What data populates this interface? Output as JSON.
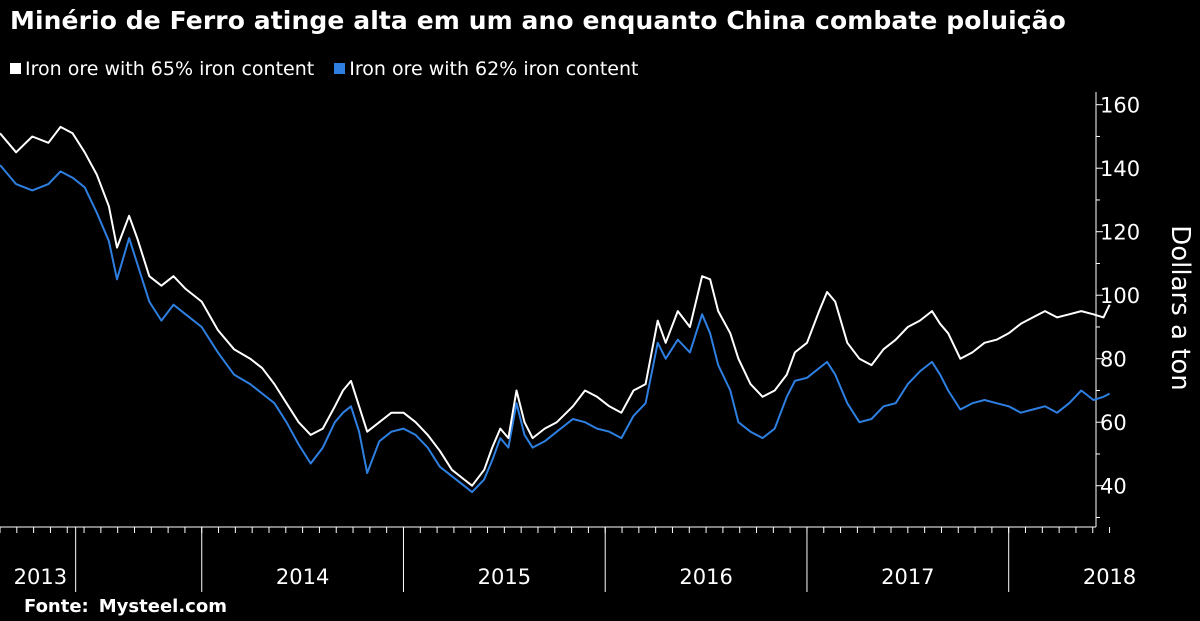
{
  "header": {
    "title": "Minério de Ferro atinge alta em um ano enquanto China combate poluição"
  },
  "source": {
    "label": "Fonte:",
    "value": "Mysteel.com"
  },
  "colors": {
    "background": "#000000",
    "series_65": "#ffffff",
    "series_62": "#2e7fe0",
    "axis": "#ffffff"
  },
  "chart_data": {
    "type": "line",
    "title": "Minério de Ferro atinge alta em um ano enquanto China combate poluição",
    "xlabel": "",
    "ylabel": "Dollars a ton",
    "ylim": [
      27,
      164
    ],
    "yticks": [
      40,
      60,
      80,
      100,
      120,
      140,
      160
    ],
    "xlim": [
      2013.0,
      2018.75
    ],
    "year_labels": [
      "2013",
      "2014",
      "2015",
      "2016",
      "2017",
      "2018"
    ],
    "year_label_positions": [
      2013.2,
      2014.5,
      2015.5,
      2016.5,
      2017.5,
      2018.5
    ],
    "year_boundaries": [
      2013.375,
      2014.0,
      2015.0,
      2016.0,
      2017.0,
      2018.0
    ],
    "legend": [
      "Iron ore with 65% iron content",
      "Iron ore with 62% iron content"
    ],
    "legend_position": "top-left",
    "series": [
      {
        "name": "Iron ore with 65% iron content",
        "color": "#ffffff",
        "points": [
          [
            2013.0,
            151
          ],
          [
            2013.08,
            145
          ],
          [
            2013.16,
            150
          ],
          [
            2013.24,
            148
          ],
          [
            2013.3,
            153
          ],
          [
            2013.36,
            151
          ],
          [
            2013.42,
            145
          ],
          [
            2013.48,
            138
          ],
          [
            2013.54,
            128
          ],
          [
            2013.58,
            115
          ],
          [
            2013.64,
            125
          ],
          [
            2013.68,
            118
          ],
          [
            2013.74,
            106
          ],
          [
            2013.8,
            103
          ],
          [
            2013.86,
            106
          ],
          [
            2013.92,
            102
          ],
          [
            2014.0,
            98
          ],
          [
            2014.08,
            89
          ],
          [
            2014.16,
            83
          ],
          [
            2014.24,
            80
          ],
          [
            2014.3,
            77
          ],
          [
            2014.36,
            72
          ],
          [
            2014.42,
            66
          ],
          [
            2014.48,
            60
          ],
          [
            2014.54,
            56
          ],
          [
            2014.6,
            58
          ],
          [
            2014.66,
            65
          ],
          [
            2014.7,
            70
          ],
          [
            2014.74,
            73
          ],
          [
            2014.78,
            65
          ],
          [
            2014.82,
            57
          ],
          [
            2014.88,
            60
          ],
          [
            2014.94,
            63
          ],
          [
            2015.0,
            63
          ],
          [
            2015.06,
            60
          ],
          [
            2015.12,
            56
          ],
          [
            2015.18,
            51
          ],
          [
            2015.24,
            45
          ],
          [
            2015.3,
            42
          ],
          [
            2015.34,
            40
          ],
          [
            2015.4,
            45
          ],
          [
            2015.44,
            52
          ],
          [
            2015.48,
            58
          ],
          [
            2015.52,
            55
          ],
          [
            2015.56,
            70
          ],
          [
            2015.6,
            60
          ],
          [
            2015.64,
            55
          ],
          [
            2015.7,
            58
          ],
          [
            2015.76,
            60
          ],
          [
            2015.84,
            65
          ],
          [
            2015.9,
            70
          ],
          [
            2015.96,
            68
          ],
          [
            2016.02,
            65
          ],
          [
            2016.08,
            63
          ],
          [
            2016.14,
            70
          ],
          [
            2016.2,
            72
          ],
          [
            2016.26,
            92
          ],
          [
            2016.3,
            85
          ],
          [
            2016.36,
            95
          ],
          [
            2016.42,
            90
          ],
          [
            2016.48,
            106
          ],
          [
            2016.52,
            105
          ],
          [
            2016.56,
            95
          ],
          [
            2016.62,
            88
          ],
          [
            2016.66,
            80
          ],
          [
            2016.72,
            72
          ],
          [
            2016.78,
            68
          ],
          [
            2016.84,
            70
          ],
          [
            2016.9,
            75
          ],
          [
            2016.94,
            82
          ],
          [
            2017.0,
            85
          ],
          [
            2017.06,
            95
          ],
          [
            2017.1,
            101
          ],
          [
            2017.14,
            98
          ],
          [
            2017.2,
            85
          ],
          [
            2017.26,
            80
          ],
          [
            2017.32,
            78
          ],
          [
            2017.38,
            83
          ],
          [
            2017.44,
            86
          ],
          [
            2017.5,
            90
          ],
          [
            2017.56,
            92
          ],
          [
            2017.62,
            95
          ],
          [
            2017.66,
            91
          ],
          [
            2017.7,
            88
          ],
          [
            2017.76,
            80
          ],
          [
            2017.82,
            82
          ],
          [
            2017.88,
            85
          ],
          [
            2017.94,
            86
          ],
          [
            2018.0,
            88
          ],
          [
            2018.06,
            91
          ],
          [
            2018.12,
            93
          ],
          [
            2018.18,
            95
          ],
          [
            2018.24,
            93
          ],
          [
            2018.3,
            94
          ],
          [
            2018.36,
            95
          ],
          [
            2018.42,
            94
          ],
          [
            2018.47,
            93
          ],
          [
            2018.5,
            97
          ]
        ]
      },
      {
        "name": "Iron ore with 62% iron content",
        "color": "#2e7fe0",
        "points": [
          [
            2013.0,
            141
          ],
          [
            2013.08,
            135
          ],
          [
            2013.16,
            133
          ],
          [
            2013.24,
            135
          ],
          [
            2013.3,
            139
          ],
          [
            2013.36,
            137
          ],
          [
            2013.42,
            134
          ],
          [
            2013.48,
            126
          ],
          [
            2013.54,
            117
          ],
          [
            2013.58,
            105
          ],
          [
            2013.64,
            118
          ],
          [
            2013.68,
            110
          ],
          [
            2013.74,
            98
          ],
          [
            2013.8,
            92
          ],
          [
            2013.86,
            97
          ],
          [
            2013.92,
            94
          ],
          [
            2014.0,
            90
          ],
          [
            2014.08,
            82
          ],
          [
            2014.16,
            75
          ],
          [
            2014.24,
            72
          ],
          [
            2014.3,
            69
          ],
          [
            2014.36,
            66
          ],
          [
            2014.42,
            60
          ],
          [
            2014.48,
            53
          ],
          [
            2014.54,
            47
          ],
          [
            2014.6,
            52
          ],
          [
            2014.66,
            60
          ],
          [
            2014.7,
            63
          ],
          [
            2014.74,
            65
          ],
          [
            2014.78,
            57
          ],
          [
            2014.82,
            44
          ],
          [
            2014.88,
            54
          ],
          [
            2014.94,
            57
          ],
          [
            2015.0,
            58
          ],
          [
            2015.06,
            56
          ],
          [
            2015.12,
            52
          ],
          [
            2015.18,
            46
          ],
          [
            2015.24,
            43
          ],
          [
            2015.3,
            40
          ],
          [
            2015.34,
            38
          ],
          [
            2015.4,
            42
          ],
          [
            2015.44,
            48
          ],
          [
            2015.48,
            55
          ],
          [
            2015.52,
            52
          ],
          [
            2015.56,
            66
          ],
          [
            2015.6,
            56
          ],
          [
            2015.64,
            52
          ],
          [
            2015.7,
            54
          ],
          [
            2015.76,
            57
          ],
          [
            2015.84,
            61
          ],
          [
            2015.9,
            60
          ],
          [
            2015.96,
            58
          ],
          [
            2016.02,
            57
          ],
          [
            2016.08,
            55
          ],
          [
            2016.14,
            62
          ],
          [
            2016.2,
            66
          ],
          [
            2016.26,
            85
          ],
          [
            2016.3,
            80
          ],
          [
            2016.36,
            86
          ],
          [
            2016.42,
            82
          ],
          [
            2016.48,
            94
          ],
          [
            2016.52,
            88
          ],
          [
            2016.56,
            78
          ],
          [
            2016.62,
            70
          ],
          [
            2016.66,
            60
          ],
          [
            2016.72,
            57
          ],
          [
            2016.78,
            55
          ],
          [
            2016.84,
            58
          ],
          [
            2016.9,
            68
          ],
          [
            2016.94,
            73
          ],
          [
            2017.0,
            74
          ],
          [
            2017.06,
            77
          ],
          [
            2017.1,
            79
          ],
          [
            2017.14,
            75
          ],
          [
            2017.2,
            66
          ],
          [
            2017.26,
            60
          ],
          [
            2017.32,
            61
          ],
          [
            2017.38,
            65
          ],
          [
            2017.44,
            66
          ],
          [
            2017.5,
            72
          ],
          [
            2017.56,
            76
          ],
          [
            2017.62,
            79
          ],
          [
            2017.66,
            75
          ],
          [
            2017.7,
            70
          ],
          [
            2017.76,
            64
          ],
          [
            2017.82,
            66
          ],
          [
            2017.88,
            67
          ],
          [
            2017.94,
            66
          ],
          [
            2018.0,
            65
          ],
          [
            2018.06,
            63
          ],
          [
            2018.12,
            64
          ],
          [
            2018.18,
            65
          ],
          [
            2018.24,
            63
          ],
          [
            2018.3,
            66
          ],
          [
            2018.36,
            70
          ],
          [
            2018.42,
            67
          ],
          [
            2018.47,
            68
          ],
          [
            2018.5,
            69
          ]
        ]
      }
    ]
  }
}
